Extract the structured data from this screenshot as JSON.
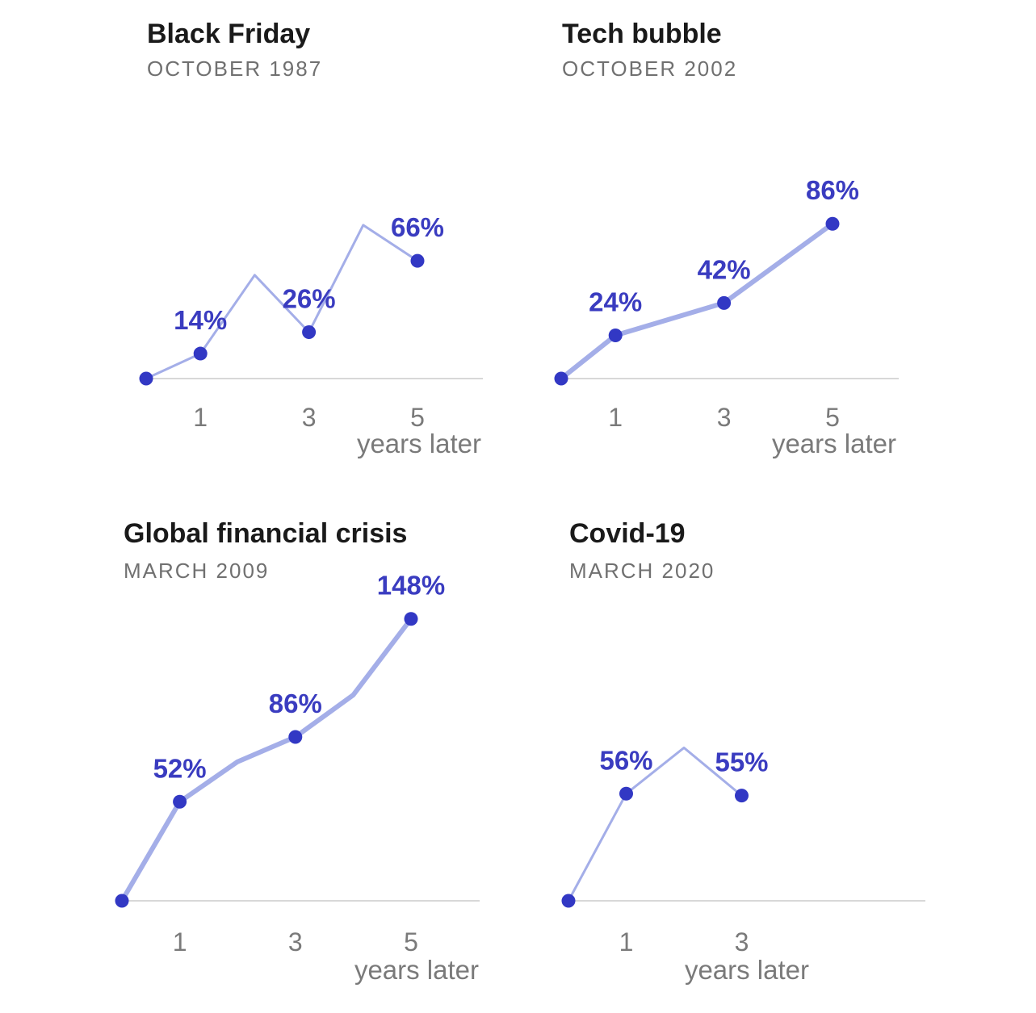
{
  "colors": {
    "line": "#a4aee8",
    "dot": "#3238c4",
    "label": "#3a3cc0",
    "axis": "#d8d8d8",
    "tick": "#7a7a7a"
  },
  "chart_data": [
    {
      "type": "line",
      "title": "Black Friday",
      "subtitle": "OCTOBER 1987",
      "x": [
        0,
        1,
        2,
        3,
        4,
        5
      ],
      "y": [
        0,
        14,
        58,
        26,
        86,
        66
      ],
      "labeled_points": [
        {
          "x": 1,
          "label": "14%"
        },
        {
          "x": 3,
          "label": "26%"
        },
        {
          "x": 5,
          "label": "66%"
        }
      ],
      "xticks": [
        "1",
        "3",
        "5"
      ],
      "xtick_values": [
        1,
        3,
        5
      ],
      "xlabel": "years later"
    },
    {
      "type": "line",
      "title": "Tech bubble",
      "subtitle": "OCTOBER 2002",
      "x": [
        0,
        1,
        3,
        5
      ],
      "y": [
        0,
        24,
        42,
        86
      ],
      "labeled_points": [
        {
          "x": 1,
          "label": "24%"
        },
        {
          "x": 3,
          "label": "42%"
        },
        {
          "x": 5,
          "label": "86%"
        }
      ],
      "xticks": [
        "1",
        "3",
        "5"
      ],
      "xtick_values": [
        1,
        3,
        5
      ],
      "xlabel": "years later"
    },
    {
      "type": "line",
      "title": "Global financial crisis",
      "subtitle": "MARCH 2009",
      "x": [
        0,
        1,
        2,
        3,
        4,
        5
      ],
      "y": [
        0,
        52,
        73,
        86,
        108,
        148
      ],
      "labeled_points": [
        {
          "x": 1,
          "label": "52%"
        },
        {
          "x": 3,
          "label": "86%"
        },
        {
          "x": 5,
          "label": "148%"
        }
      ],
      "xticks": [
        "1",
        "3",
        "5"
      ],
      "xtick_values": [
        1,
        3,
        5
      ],
      "xlabel": "years later"
    },
    {
      "type": "line",
      "title": "Covid-19",
      "subtitle": "MARCH 2020",
      "x": [
        0,
        1,
        2,
        3
      ],
      "y": [
        0,
        56,
        80,
        55
      ],
      "labeled_points": [
        {
          "x": 1,
          "label": "56%"
        },
        {
          "x": 3,
          "label": "55%"
        }
      ],
      "xticks": [
        "1",
        "3"
      ],
      "xtick_values": [
        1,
        3
      ],
      "xlabel": "years later"
    }
  ]
}
